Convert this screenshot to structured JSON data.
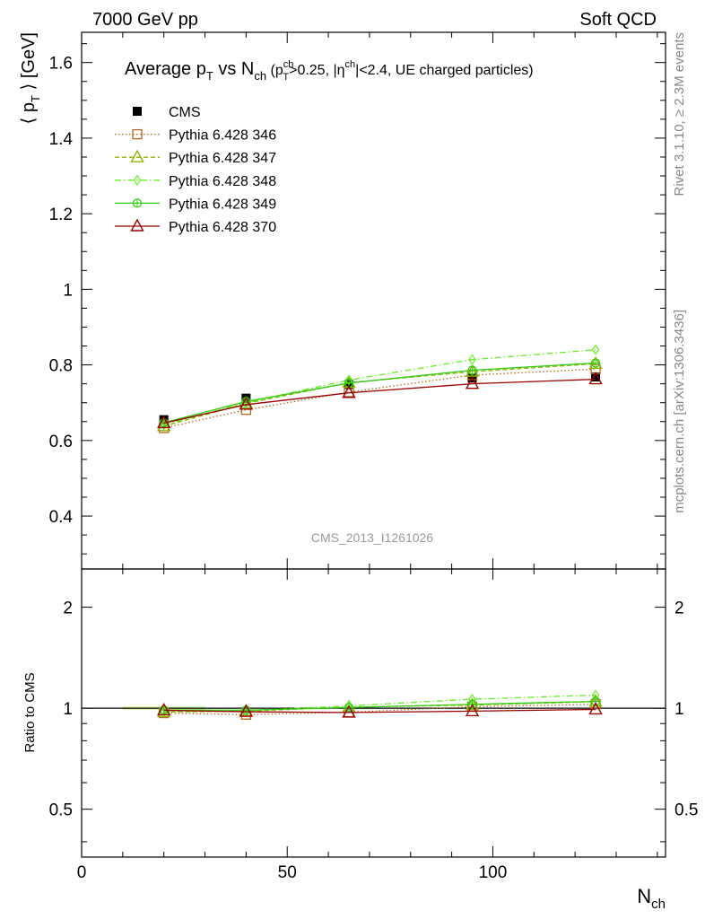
{
  "header": {
    "energy": "7000 GeV pp",
    "process": "Soft QCD"
  },
  "side": {
    "rivet": "Rivet 3.1.10, ≥ 2.3M events",
    "mcplots": "mcplots.cern.ch [arXiv:1306.3436]"
  },
  "chart_data": [
    {
      "type": "line",
      "title_parts": {
        "pre": "Average p",
        "sub1": "T",
        "mid": " vs N",
        "sub2": "ch",
        "cut_open": " (p",
        "cut_sup": "ch",
        "cut_sub": "T",
        "cut_mid": ">0.25, |η",
        "cut_sup2": "ch",
        "cut_end": "|<2.4, UE charged particles)"
      },
      "ylabel": {
        "open": "⟨ p",
        "sub": "T",
        "close": " ⟩ [GeV]"
      },
      "watermark": "CMS_2013_I1261026",
      "xlim": [
        0,
        142
      ],
      "ylim": [
        0.26,
        1.68
      ],
      "yticks": [
        0.4,
        0.6,
        0.8,
        1,
        1.2,
        1.4,
        1.6
      ],
      "ytick_labels": [
        "0.4",
        "0.6",
        "0.8",
        "1",
        "1.2",
        "1.4",
        "1.6"
      ],
      "x": [
        20,
        40,
        65,
        95,
        125
      ],
      "series": [
        {
          "name": "CMS",
          "values": [
            0.655,
            0.712,
            0.748,
            0.765,
            0.768
          ],
          "color": "#000000",
          "marker": "filled-square",
          "dash": "none"
        },
        {
          "name": "Pythia 6.428 346",
          "values": [
            0.633,
            0.681,
            0.728,
            0.773,
            0.789
          ],
          "color": "#b5651d",
          "marker": "open-square",
          "dash": "dotted"
        },
        {
          "name": "Pythia 6.428 347",
          "values": [
            0.638,
            0.698,
            0.753,
            0.782,
            0.803
          ],
          "color": "#8db600",
          "marker": "open-triangle",
          "dash": "dashed"
        },
        {
          "name": "Pythia 6.428 348",
          "values": [
            0.641,
            0.7,
            0.76,
            0.814,
            0.84
          ],
          "color": "#66ee22",
          "marker": "open-diamond",
          "dash": "dashdot"
        },
        {
          "name": "Pythia 6.428 349",
          "values": [
            0.647,
            0.703,
            0.752,
            0.786,
            0.805
          ],
          "color": "#33cc11",
          "marker": "crossed-circle",
          "dash": "solid"
        },
        {
          "name": "Pythia 6.428 370",
          "values": [
            0.646,
            0.695,
            0.726,
            0.75,
            0.762
          ],
          "color": "#990000",
          "marker": "open-triangle",
          "dash": "solid"
        }
      ]
    },
    {
      "type": "line",
      "ylabel": "Ratio to CMS",
      "xlabel": {
        "main": "N",
        "sub": "ch"
      },
      "xlim": [
        0,
        142
      ],
      "ylim": [
        0.36,
        2.6
      ],
      "log_y": true,
      "yticks": [
        0.5,
        1,
        2
      ],
      "ytick_labels": [
        "0.5",
        "1",
        "2"
      ],
      "xticks": [
        0,
        50,
        100
      ],
      "xtick_labels": [
        "0",
        "50",
        "100"
      ],
      "x": [
        20,
        40,
        65,
        95,
        125
      ],
      "reference_line": 1,
      "series": [
        {
          "name": "Pythia 6.428 346",
          "values": [
            0.967,
            0.957,
            0.973,
            1.01,
            1.027
          ]
        },
        {
          "name": "Pythia 6.428 347",
          "values": [
            0.974,
            0.98,
            1.007,
            1.022,
            1.046
          ]
        },
        {
          "name": "Pythia 6.428 348",
          "values": [
            0.979,
            0.983,
            1.016,
            1.064,
            1.094
          ]
        },
        {
          "name": "Pythia 6.428 349",
          "values": [
            0.988,
            0.987,
            1.005,
            1.027,
            1.048
          ]
        },
        {
          "name": "Pythia 6.428 370",
          "values": [
            0.986,
            0.976,
            0.971,
            0.98,
            0.992
          ]
        }
      ]
    }
  ]
}
